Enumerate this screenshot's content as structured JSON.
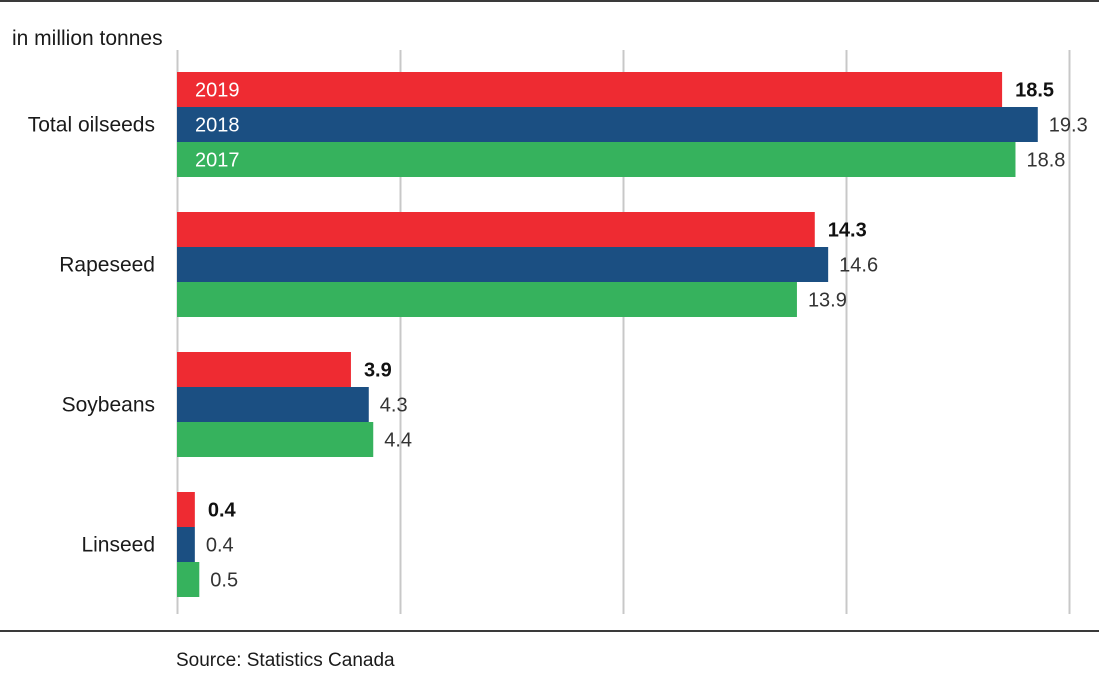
{
  "unit_label": "in million  tonnes",
  "source": "Source:  Statistics Canada",
  "chart_data": {
    "type": "bar",
    "orientation": "horizontal",
    "categories": [
      "Total oilseeds",
      "Rapeseed",
      "Soybeans",
      "Linseed"
    ],
    "series": [
      {
        "name": "2019",
        "color": "#ee2b32",
        "values": [
          18.5,
          14.3,
          3.9,
          0.4
        ]
      },
      {
        "name": "2018",
        "color": "#1b4f82",
        "values": [
          19.3,
          14.6,
          4.3,
          0.4
        ]
      },
      {
        "name": "2017",
        "color": "#36b25d",
        "values": [
          18.8,
          13.9,
          4.4,
          0.5
        ]
      }
    ],
    "value_labels": [
      [
        "18.5",
        "14.3",
        "3.9",
        "0.4"
      ],
      [
        "19.3",
        "14.6",
        "4.3",
        "0.4"
      ],
      [
        "18.8",
        "13.9",
        "4.4",
        "0.5"
      ]
    ],
    "xlim": [
      0,
      20
    ],
    "grid_values": [
      0,
      5,
      10,
      15,
      20
    ],
    "grid": true,
    "legend": "inside first group bars",
    "ylabel": "in million  tonnes"
  }
}
